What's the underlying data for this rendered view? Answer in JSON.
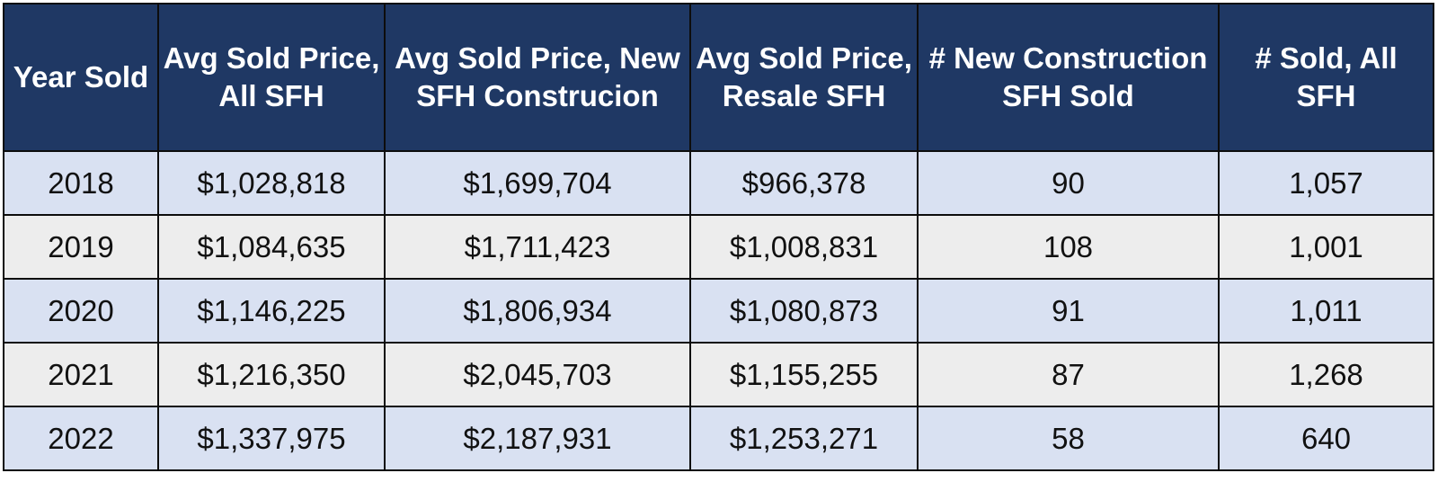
{
  "chart_data": {
    "type": "table",
    "columns": [
      {
        "line1": "Year Sold",
        "line2": ""
      },
      {
        "line1": "Avg Sold Price,",
        "line2": "All SFH"
      },
      {
        "line1": "Avg Sold Price, New",
        "line2": "SFH Construcion"
      },
      {
        "line1": "Avg Sold Price,",
        "line2": "Resale SFH"
      },
      {
        "line1": "# New Construction",
        "line2": "SFH Sold"
      },
      {
        "line1": "# Sold, All",
        "line2": "SFH"
      }
    ],
    "rows": [
      [
        "2018",
        "$1,028,818",
        "$1,699,704",
        "$966,378",
        "90",
        "1,057"
      ],
      [
        "2019",
        "$1,084,635",
        "$1,711,423",
        "$1,008,831",
        "108",
        "1,001"
      ],
      [
        "2020",
        "$1,146,225",
        "$1,806,934",
        "$1,080,873",
        "91",
        "1,011"
      ],
      [
        "2021",
        "$1,216,350",
        "$2,045,703",
        "$1,155,255",
        "87",
        "1,268"
      ],
      [
        "2022",
        "$1,337,975",
        "$2,187,931",
        "$1,253,271",
        "58",
        "640"
      ]
    ]
  },
  "colors": {
    "header_bg": "#1f3864",
    "header_text": "#ffffff",
    "row_odd_bg": "#d9e1f2",
    "row_even_bg": "#ededed",
    "border": "#0d0d0d"
  }
}
